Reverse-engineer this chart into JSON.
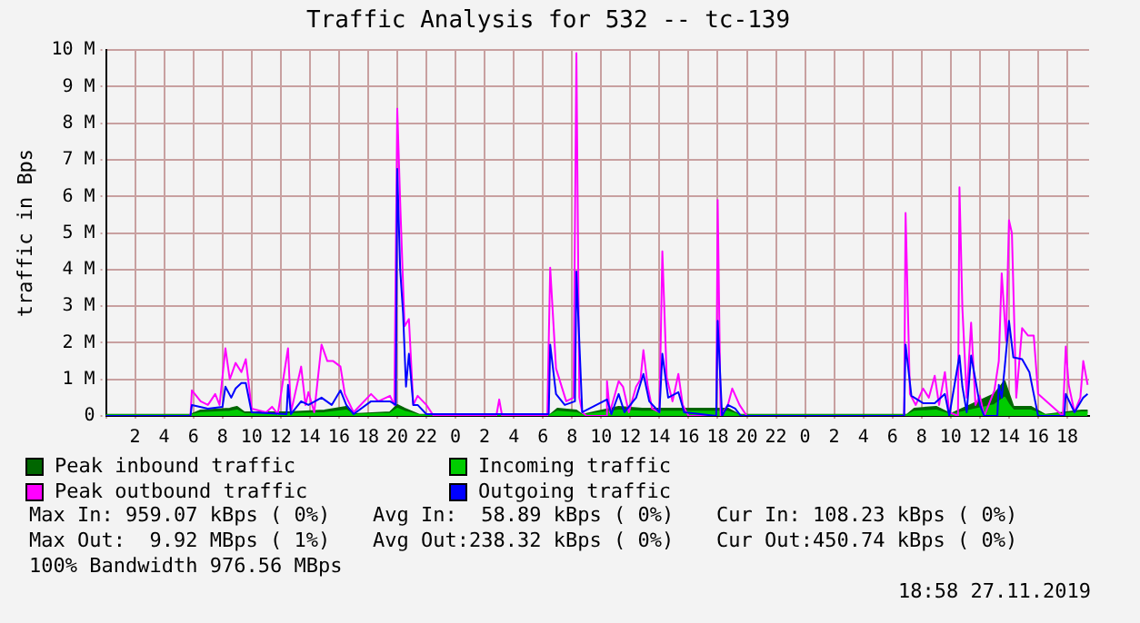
{
  "chart_data": {
    "type": "area",
    "title": "Traffic Analysis for 532 -- tc-139",
    "ylabel": "traffic in Bps",
    "x": [
      "2019-11-25T00:00",
      "2019-11-25T05:48",
      "2019-11-25T06:30",
      "2019-11-25T08:30",
      "2019-11-25T09:00",
      "2019-11-25T09:30",
      "2019-11-25T12:30",
      "2019-11-25T15:00",
      "2019-11-25T16:30",
      "2019-11-25T17:00",
      "2019-11-25T19:30",
      "2019-11-25T20:00",
      "2019-11-25T20:30",
      "2019-11-25T21:30",
      "2019-11-26T06:30",
      "2019-11-26T07:00",
      "2019-11-26T08:18",
      "2019-11-26T08:42",
      "2019-11-26T11:12",
      "2019-11-26T12:48",
      "2019-11-26T14:30",
      "2019-11-26T18:42",
      "2019-11-26T19:30",
      "2019-11-27T07:00",
      "2019-11-27T07:30",
      "2019-11-27T09:00",
      "2019-11-27T10:00",
      "2019-11-27T13:00",
      "2019-11-27T13:42",
      "2019-11-27T14:00",
      "2019-11-27T14:18",
      "2019-11-27T15:30",
      "2019-11-27T16:30",
      "2019-11-27T19:00",
      "2019-11-27T19:24"
    ],
    "series": [
      {
        "name": "Peak inbound traffic",
        "color": "#006600",
        "values": [
          30000,
          30000,
          150000,
          200000,
          250000,
          100000,
          100000,
          150000,
          250000,
          50000,
          100000,
          300000,
          200000,
          30000,
          30000,
          200000,
          150000,
          30000,
          250000,
          200000,
          200000,
          200000,
          30000,
          30000,
          200000,
          250000,
          50000,
          600000,
          950000,
          600000,
          250000,
          250000,
          30000,
          150000,
          150000
        ]
      },
      {
        "name": "Incoming traffic",
        "color": "#00cc00",
        "values": [
          20000,
          20000,
          80000,
          120000,
          150000,
          50000,
          50000,
          80000,
          150000,
          30000,
          60000,
          200000,
          120000,
          20000,
          20000,
          120000,
          80000,
          20000,
          150000,
          120000,
          120000,
          120000,
          20000,
          20000,
          120000,
          150000,
          30000,
          300000,
          500000,
          300000,
          150000,
          150000,
          20000,
          100000,
          100000
        ]
      },
      {
        "name": "Peak outbound traffic",
        "color": "#ff00ff",
        "type": "line",
        "x": [
          "2019-11-25T00:00",
          "2019-11-25T05:48",
          "2019-11-25T05:54",
          "2019-11-25T06:30",
          "2019-11-25T07:00",
          "2019-11-25T07:30",
          "2019-11-25T07:48",
          "2019-11-25T08:12",
          "2019-11-25T08:30",
          "2019-11-25T08:54",
          "2019-11-25T09:18",
          "2019-11-25T09:36",
          "2019-11-25T10:00",
          "2019-11-25T11:00",
          "2019-11-25T11:24",
          "2019-11-25T11:48",
          "2019-11-25T12:30",
          "2019-11-25T12:42",
          "2019-11-25T13:24",
          "2019-11-25T13:42",
          "2019-11-25T13:54",
          "2019-11-25T14:18",
          "2019-11-25T14:48",
          "2019-11-25T15:12",
          "2019-11-25T15:36",
          "2019-11-25T16:06",
          "2019-11-25T16:24",
          "2019-11-25T17:00",
          "2019-11-25T18:12",
          "2019-11-25T18:42",
          "2019-11-25T19:30",
          "2019-11-25T19:48",
          "2019-11-25T20:00",
          "2019-11-25T20:12",
          "2019-11-25T20:30",
          "2019-11-25T20:48",
          "2019-11-25T21:06",
          "2019-11-25T21:24",
          "2019-11-25T22:00",
          "2019-11-25T22:30",
          "2019-11-26T02:48",
          "2019-11-26T03:00",
          "2019-11-26T03:12",
          "2019-11-26T06:18",
          "2019-11-26T06:30",
          "2019-11-26T06:54",
          "2019-11-26T07:36",
          "2019-11-26T08:06",
          "2019-11-26T08:18",
          "2019-11-26T08:30",
          "2019-11-26T08:42",
          "2019-11-26T09:00",
          "2019-11-26T10:18",
          "2019-11-26T10:24",
          "2019-11-26T10:36",
          "2019-11-26T11:12",
          "2019-11-26T11:30",
          "2019-11-26T11:54",
          "2019-11-26T12:24",
          "2019-11-26T12:42",
          "2019-11-26T12:54",
          "2019-11-26T13:12",
          "2019-11-26T13:30",
          "2019-11-26T14:00",
          "2019-11-26T14:12",
          "2019-11-26T14:30",
          "2019-11-26T14:54",
          "2019-11-26T15:18",
          "2019-11-26T15:36",
          "2019-11-26T16:00",
          "2019-11-26T17:54",
          "2019-11-26T18:00",
          "2019-11-26T18:12",
          "2019-11-26T18:42",
          "2019-11-26T19:00",
          "2019-11-26T19:30",
          "2019-11-26T20:00",
          "2019-11-27T06:48",
          "2019-11-27T06:54",
          "2019-11-27T07:12",
          "2019-11-27T07:36",
          "2019-11-27T08:06",
          "2019-11-27T08:30",
          "2019-11-27T08:54",
          "2019-11-27T09:12",
          "2019-11-27T09:36",
          "2019-11-27T09:54",
          "2019-11-27T10:30",
          "2019-11-27T10:36",
          "2019-11-27T10:48",
          "2019-11-27T11:06",
          "2019-11-27T11:24",
          "2019-11-27T11:42",
          "2019-11-27T12:00",
          "2019-11-27T12:18",
          "2019-11-27T13:00",
          "2019-11-27T13:18",
          "2019-11-27T13:30",
          "2019-11-27T13:48",
          "2019-11-27T14:00",
          "2019-11-27T14:12",
          "2019-11-27T14:30",
          "2019-11-27T14:54",
          "2019-11-27T15:18",
          "2019-11-27T15:42",
          "2019-11-27T16:00",
          "2019-11-27T17:42",
          "2019-11-27T17:54",
          "2019-11-27T18:06",
          "2019-11-27T18:30",
          "2019-11-27T18:54",
          "2019-11-27T19:06",
          "2019-11-27T19:24"
        ],
        "values": [
          0,
          0,
          700000,
          400000,
          300000,
          600000,
          300000,
          1850000,
          1000000,
          1450000,
          1200000,
          1550000,
          200000,
          100000,
          250000,
          50000,
          1850000,
          100000,
          1350000,
          300000,
          650000,
          100000,
          1950000,
          1500000,
          1500000,
          1350000,
          600000,
          100000,
          600000,
          400000,
          550000,
          300000,
          8400000,
          5850000,
          2450000,
          2650000,
          300000,
          550000,
          300000,
          0,
          0,
          450000,
          0,
          0,
          4050000,
          1300000,
          400000,
          500000,
          9920000,
          500000,
          100000,
          0,
          0,
          950000,
          100000,
          950000,
          800000,
          100000,
          800000,
          1000000,
          1800000,
          800000,
          200000,
          100000,
          4500000,
          1050000,
          400000,
          1150000,
          300000,
          0,
          0,
          5900000,
          0,
          300000,
          750000,
          300000,
          0,
          0,
          5550000,
          600000,
          300000,
          750000,
          500000,
          1100000,
          300000,
          1200000,
          100000,
          0,
          6250000,
          2950000,
          500000,
          2550000,
          300000,
          550000,
          0,
          700000,
          1500000,
          3900000,
          2050000,
          5350000,
          5000000,
          500000,
          2400000,
          2200000,
          2200000,
          600000,
          0,
          1900000,
          850000,
          100000,
          500000,
          1500000,
          850000
        ]
      },
      {
        "name": "Outgoing traffic",
        "color": "#0000ff",
        "type": "line",
        "x": [
          "2019-11-25T00:00",
          "2019-11-25T05:48",
          "2019-11-25T05:54",
          "2019-11-25T07:00",
          "2019-11-25T08:00",
          "2019-11-25T08:12",
          "2019-11-25T08:36",
          "2019-11-25T08:54",
          "2019-11-25T09:18",
          "2019-11-25T09:36",
          "2019-11-25T10:00",
          "2019-11-25T12:24",
          "2019-11-25T12:30",
          "2019-11-25T12:42",
          "2019-11-25T13:24",
          "2019-11-25T13:54",
          "2019-11-25T14:48",
          "2019-11-25T15:30",
          "2019-11-25T16:06",
          "2019-11-25T16:30",
          "2019-11-25T17:00",
          "2019-11-25T18:12",
          "2019-11-25T19:30",
          "2019-11-25T19:54",
          "2019-11-25T20:00",
          "2019-11-25T20:12",
          "2019-11-25T20:24",
          "2019-11-25T20:36",
          "2019-11-25T20:48",
          "2019-11-25T21:06",
          "2019-11-25T21:24",
          "2019-11-25T22:00",
          "2019-11-26T06:24",
          "2019-11-26T06:30",
          "2019-11-26T06:54",
          "2019-11-26T07:30",
          "2019-11-26T08:12",
          "2019-11-26T08:18",
          "2019-11-26T08:42",
          "2019-11-26T10:24",
          "2019-11-26T10:42",
          "2019-11-26T11:12",
          "2019-11-26T11:36",
          "2019-11-26T12:24",
          "2019-11-26T12:54",
          "2019-11-26T13:18",
          "2019-11-26T14:00",
          "2019-11-26T14:12",
          "2019-11-26T14:36",
          "2019-11-26T15:18",
          "2019-11-26T15:42",
          "2019-11-26T17:54",
          "2019-11-26T18:00",
          "2019-11-26T18:18",
          "2019-11-26T18:42",
          "2019-11-26T19:12",
          "2019-11-26T19:36",
          "2019-11-27T06:48",
          "2019-11-27T06:54",
          "2019-11-27T07:18",
          "2019-11-27T08:06",
          "2019-11-27T08:54",
          "2019-11-27T09:36",
          "2019-11-27T09:54",
          "2019-11-27T10:36",
          "2019-11-27T10:48",
          "2019-11-27T11:06",
          "2019-11-27T11:24",
          "2019-11-27T12:00",
          "2019-11-27T12:18",
          "2019-11-27T13:12",
          "2019-11-27T13:18",
          "2019-11-27T13:30",
          "2019-11-27T13:42",
          "2019-11-27T14:00",
          "2019-11-27T14:18",
          "2019-11-27T14:54",
          "2019-11-27T15:24",
          "2019-11-27T15:42",
          "2019-11-27T16:00",
          "2019-11-27T17:48",
          "2019-11-27T17:54",
          "2019-11-27T18:30",
          "2019-11-27T19:06",
          "2019-11-27T19:24"
        ],
        "values": [
          0,
          0,
          300000,
          200000,
          250000,
          800000,
          500000,
          750000,
          900000,
          900000,
          100000,
          50000,
          850000,
          50000,
          400000,
          300000,
          500000,
          300000,
          700000,
          300000,
          50000,
          400000,
          400000,
          300000,
          6750000,
          4000000,
          2800000,
          800000,
          1700000,
          300000,
          300000,
          50000,
          50000,
          1950000,
          600000,
          300000,
          400000,
          3950000,
          100000,
          450000,
          50000,
          600000,
          100000,
          500000,
          1150000,
          400000,
          100000,
          1700000,
          500000,
          650000,
          100000,
          0,
          2600000,
          0,
          300000,
          200000,
          0,
          0,
          1950000,
          550000,
          350000,
          350000,
          600000,
          0,
          1650000,
          800000,
          100000,
          1650000,
          300000,
          0,
          0,
          850000,
          500000,
          1300000,
          2600000,
          1600000,
          1550000,
          1200000,
          600000,
          0,
          0,
          600000,
          100000,
          500000,
          600000
        ]
      }
    ],
    "xlim": [
      "2019-11-25T00:00",
      "2019-11-27T19:30"
    ],
    "xticks": [
      {
        "value": "2019-11-25T00:00",
        "label": null
      },
      {
        "value": "2019-11-25T02:00",
        "label": "2"
      },
      {
        "value": "2019-11-25T04:00",
        "label": "4"
      },
      {
        "value": "2019-11-25T06:00",
        "label": "6"
      },
      {
        "value": "2019-11-25T08:00",
        "label": "8"
      },
      {
        "value": "2019-11-25T10:00",
        "label": "10"
      },
      {
        "value": "2019-11-25T12:00",
        "label": "12"
      },
      {
        "value": "2019-11-25T14:00",
        "label": "14"
      },
      {
        "value": "2019-11-25T16:00",
        "label": "16"
      },
      {
        "value": "2019-11-25T18:00",
        "label": "18"
      },
      {
        "value": "2019-11-25T20:00",
        "label": "20"
      },
      {
        "value": "2019-11-25T22:00",
        "label": "22"
      },
      {
        "value": "2019-11-26T00:00",
        "label": "0"
      },
      {
        "value": "2019-11-26T02:00",
        "label": "2"
      },
      {
        "value": "2019-11-26T04:00",
        "label": "4"
      },
      {
        "value": "2019-11-26T06:00",
        "label": "6"
      },
      {
        "value": "2019-11-26T08:00",
        "label": "8"
      },
      {
        "value": "2019-11-26T10:00",
        "label": "10"
      },
      {
        "value": "2019-11-26T12:00",
        "label": "12"
      },
      {
        "value": "2019-11-26T14:00",
        "label": "14"
      },
      {
        "value": "2019-11-26T16:00",
        "label": "16"
      },
      {
        "value": "2019-11-26T18:00",
        "label": "18"
      },
      {
        "value": "2019-11-26T20:00",
        "label": "20"
      },
      {
        "value": "2019-11-26T22:00",
        "label": "22"
      },
      {
        "value": "2019-11-27T00:00",
        "label": "0"
      },
      {
        "value": "2019-11-27T02:00",
        "label": "2"
      },
      {
        "value": "2019-11-27T04:00",
        "label": "4"
      },
      {
        "value": "2019-11-27T06:00",
        "label": "6"
      },
      {
        "value": "2019-11-27T08:00",
        "label": "8"
      },
      {
        "value": "2019-11-27T10:00",
        "label": "10"
      },
      {
        "value": "2019-11-27T12:00",
        "label": "12"
      },
      {
        "value": "2019-11-27T14:00",
        "label": "14"
      },
      {
        "value": "2019-11-27T16:00",
        "label": "16"
      },
      {
        "value": "2019-11-27T18:00",
        "label": "18"
      }
    ],
    "ylim": [
      0,
      10000000
    ],
    "yticks": [
      {
        "value": 0,
        "label": "0"
      },
      {
        "value": 1000000,
        "label": "1 M"
      },
      {
        "value": 2000000,
        "label": "2 M"
      },
      {
        "value": 3000000,
        "label": "3 M"
      },
      {
        "value": 4000000,
        "label": "4 M"
      },
      {
        "value": 5000000,
        "label": "5 M"
      },
      {
        "value": 6000000,
        "label": "6 M"
      },
      {
        "value": 7000000,
        "label": "7 M"
      },
      {
        "value": 8000000,
        "label": "8 M"
      },
      {
        "value": 9000000,
        "label": "9 M"
      },
      {
        "value": 10000000,
        "label": "10 M"
      }
    ],
    "grid": true,
    "legend": "bottom",
    "annotations": [
      "Max In: 959.07 kBps ( 0%)",
      "Avg In:  58.89 kBps ( 0%)",
      "Cur In: 108.23 kBps ( 0%)",
      "Max Out:  9.92 MBps ( 1%)",
      "Avg Out:238.32 kBps ( 0%)",
      "Cur Out:450.74 kBps ( 0%)",
      "100% Bandwidth 976.56 MBps",
      "18:58 27.11.2019"
    ]
  }
}
